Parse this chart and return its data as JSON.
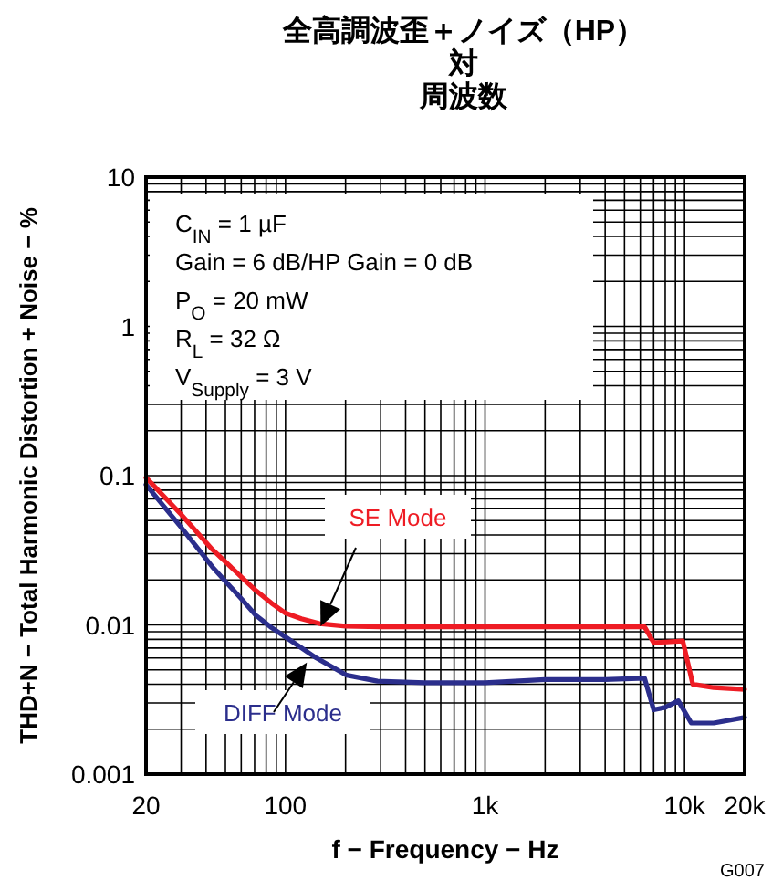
{
  "chart_data": {
    "type": "line",
    "title": "全高調波歪＋ノイズ（HP）対周波数",
    "xlabel": "f − Frequency − Hz",
    "ylabel": "THD+N − Total Harmonic Distortion + Noise − %",
    "log": "xy",
    "grid": true,
    "xlim": [
      20,
      20000
    ],
    "xticks": [
      20,
      100,
      {
        "value": 1000,
        "label": "1k"
      },
      {
        "value": 10000,
        "label": "10k"
      },
      {
        "value": 20000,
        "label": "20k"
      }
    ],
    "ylim": [
      0.001,
      10
    ],
    "yticks": [
      0.001,
      0.01,
      0.1,
      1,
      10
    ],
    "series": [
      {
        "name": "SE Mode",
        "color": "#ee1c24",
        "x": [
          20,
          30,
          43,
          60,
          71,
          85,
          100,
          120,
          148,
          200,
          300,
          500,
          1000,
          2000,
          4000,
          6300,
          7000,
          9800,
          11000,
          14000,
          20000
        ],
        "values": [
          0.097,
          0.055,
          0.032,
          0.021,
          0.017,
          0.014,
          0.012,
          0.011,
          0.0102,
          0.0098,
          0.0097,
          0.0097,
          0.0097,
          0.0097,
          0.0097,
          0.0097,
          0.0076,
          0.0078,
          0.004,
          0.0038,
          0.0037
        ]
      },
      {
        "name": "DIFF Mode",
        "color": "#2b2e8c",
        "x": [
          20,
          30,
          43,
          60,
          71,
          85,
          100,
          143,
          203,
          289,
          500,
          1000,
          2000,
          4000,
          6300,
          7000,
          8000,
          9300,
          10800,
          14000,
          20000
        ],
        "values": [
          0.087,
          0.045,
          0.0245,
          0.015,
          0.0116,
          0.0096,
          0.0083,
          0.006,
          0.0046,
          0.0042,
          0.0041,
          0.0041,
          0.0043,
          0.0043,
          0.0044,
          0.0027,
          0.0028,
          0.0031,
          0.0022,
          0.0022,
          0.0024
        ]
      }
    ],
    "annotations": [
      "C$_{IN}$ = 1 µF",
      "Gain = 6 dB/HP Gain = 0 dB",
      "P$_{O}$ = 20 mW",
      "R$_{L}$ = 32 Ω",
      "V$_{Supply}$ = 3 V",
      "G007"
    ]
  }
}
